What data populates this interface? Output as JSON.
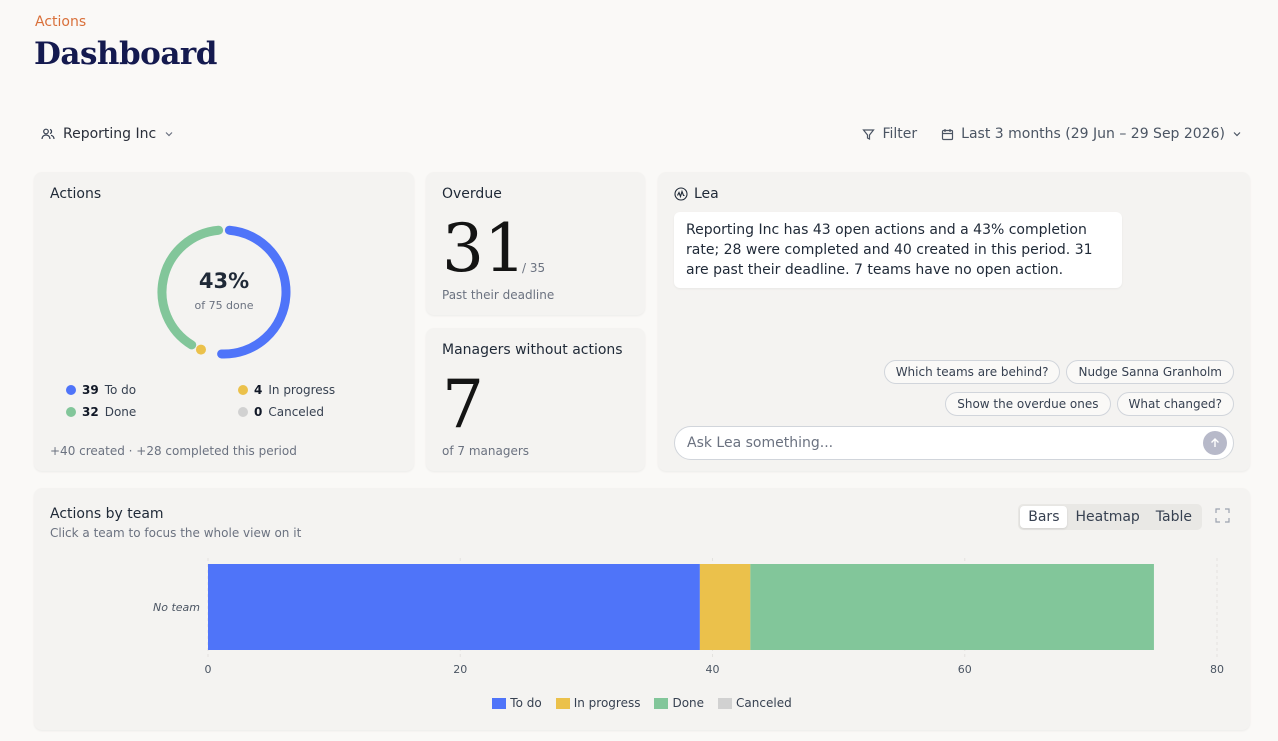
{
  "header": {
    "breadcrumb": "Actions",
    "title": "Dashboard"
  },
  "toolbar": {
    "org_name": "Reporting Inc",
    "filter_label": "Filter",
    "date_range": "Last 3 months (29 Jun – 29 Sep 2026)"
  },
  "actions_card": {
    "title": "Actions",
    "pct": "43%",
    "sub": "of 75 done",
    "legend": [
      {
        "count": "39",
        "label": "To do",
        "color": "#4f74f9"
      },
      {
        "count": "4",
        "label": "In progress",
        "color": "#ebc14b"
      },
      {
        "count": "32",
        "label": "Done",
        "color": "#82c69a"
      },
      {
        "count": "0",
        "label": "Canceled",
        "color": "#d1d1d1"
      }
    ],
    "footer": "+40 created · +28 completed this period",
    "donut": {
      "total": 75,
      "todo": 39,
      "in_progress": 4,
      "done": 32,
      "canceled": 0
    }
  },
  "overdue_card": {
    "title": "Overdue",
    "value": "31",
    "of": "/ 35",
    "footer": "Past their deadline"
  },
  "managers_card": {
    "title": "Managers without actions",
    "value": "7",
    "footer": "of 7 managers"
  },
  "lea": {
    "name": "Lea",
    "message": "Reporting Inc has 43 open actions and a 43% completion rate; 28 were completed and 40 created in this period. 31 are past their deadline. 7 teams have no open action.",
    "chips": [
      "Which teams are behind?",
      "Nudge Sanna Granholm",
      "Show the overdue ones",
      "What changed?"
    ],
    "placeholder": "Ask Lea something..."
  },
  "team_chart": {
    "title": "Actions by team",
    "subtitle": "Click a team to focus the whole view on it",
    "views": [
      "Bars",
      "Heatmap",
      "Table"
    ],
    "active_view": "Bars"
  },
  "chart_data": {
    "type": "bar",
    "orientation": "horizontal",
    "stacked": true,
    "categories": [
      "No team"
    ],
    "series": [
      {
        "name": "To do",
        "values": [
          39
        ],
        "color": "#4f74f9"
      },
      {
        "name": "In progress",
        "values": [
          4
        ],
        "color": "#ebc14b"
      },
      {
        "name": "Done",
        "values": [
          32
        ],
        "color": "#82c69a"
      },
      {
        "name": "Canceled",
        "values": [
          0
        ],
        "color": "#d1d1d1"
      }
    ],
    "xlim": [
      0,
      80
    ],
    "xticks": [
      "0",
      "20",
      "40",
      "60",
      "80"
    ],
    "grid": true,
    "legend": "bottom"
  }
}
